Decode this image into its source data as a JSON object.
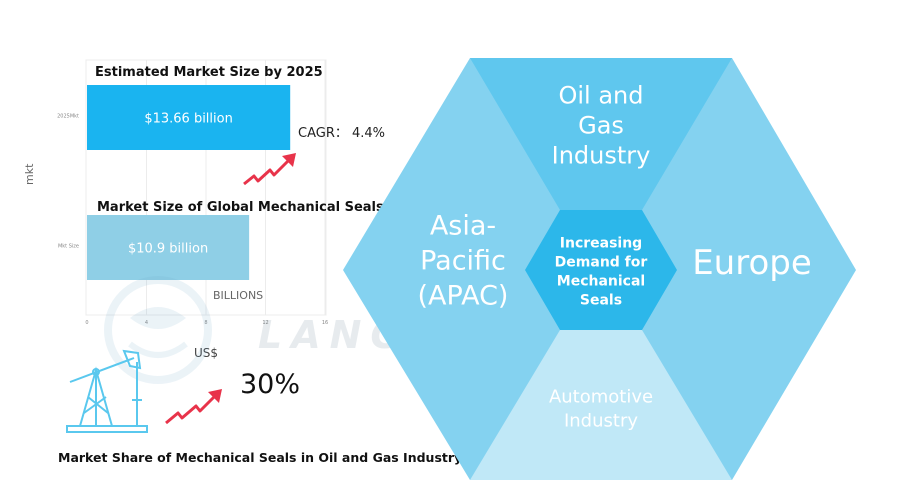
{
  "chart_data": [
    {
      "type": "bar",
      "orientation": "horizontal",
      "categories": [
        "2025Mkt",
        "Mkt Size"
      ],
      "values": [
        13.66,
        10.9
      ],
      "value_labels": [
        "$13.66 billion",
        "$10.9 billion"
      ],
      "bar_titles": [
        "Estimated Market Size by 2025",
        "Market Size of Global Mechanical Seals"
      ],
      "ylabel": "mkt",
      "xlabel": "US$",
      "unit_label": "BILLIONS",
      "xlim": [
        0,
        16
      ],
      "xticks": [
        "0",
        "4",
        "8",
        "12",
        "16"
      ],
      "grid": true,
      "annotation": "CAGR： 4.4%",
      "colors": [
        "#1ab4f0",
        "#8fcfe6"
      ]
    }
  ],
  "oil_gas": {
    "value": "30%",
    "caption": "Market Share of Mechanical Seals in Oil and Gas Industry"
  },
  "hexagon": {
    "center": "Increasing Demand for Mechanical Seals",
    "segments": {
      "top": "Oil and Gas Industry",
      "left": "Asia-Pacific (APAC)",
      "right": "Europe",
      "bottom": "Automotive Industry"
    }
  },
  "watermark": "LANGSUN CARBIDE",
  "colors": {
    "hex_light": "#84d2f0",
    "hex_top": "#5fc7ee",
    "hex_bottom": "#c0e8f7",
    "hex_center": "#2cb7ea",
    "arrow": "#e8334a",
    "icon": "#5ac8ee"
  }
}
